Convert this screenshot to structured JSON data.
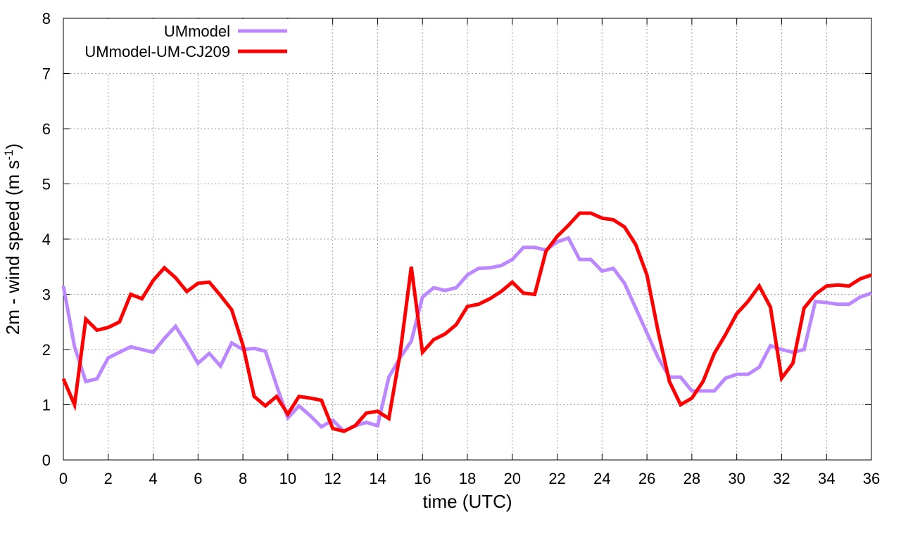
{
  "chart_data": {
    "type": "line",
    "xlabel": "time (UTC)",
    "ylabel_main": "2m - wind speed  (m s",
    "ylabel_sup": "-1",
    "ylabel_close": ")",
    "xlim": [
      0,
      36
    ],
    "ylim": [
      0,
      8
    ],
    "xticks": [
      "0",
      "2",
      "4",
      "6",
      "8",
      "10",
      "12",
      "14",
      "16",
      "18",
      "20",
      "22",
      "24",
      "26",
      "28",
      "30",
      "32",
      "34",
      "36"
    ],
    "yticks": [
      "0",
      "1",
      "2",
      "3",
      "4",
      "5",
      "6",
      "7",
      "8"
    ],
    "grid": true,
    "legend_position": "top-left",
    "x": [
      0,
      0.5,
      1,
      1.5,
      2,
      2.5,
      3,
      3.5,
      4,
      4.5,
      5,
      5.5,
      6,
      6.5,
      7,
      7.5,
      8,
      8.5,
      9,
      9.5,
      10,
      10.5,
      11,
      11.5,
      12,
      12.5,
      13,
      13.5,
      14,
      14.5,
      15,
      15.5,
      16,
      16.5,
      17,
      17.5,
      18,
      18.5,
      19,
      19.5,
      20,
      20.5,
      21,
      21.5,
      22,
      22.5,
      23,
      23.5,
      24,
      24.5,
      25,
      25.5,
      26,
      26.5,
      27,
      27.5,
      28,
      28.5,
      29,
      29.5,
      30,
      30.5,
      31,
      31.5,
      32,
      32.5,
      33,
      33.5,
      34,
      34.5,
      35,
      35.5,
      36
    ],
    "series": [
      {
        "name": "UMmodel",
        "color": "#bb88ff",
        "values": [
          3.15,
          2.05,
          1.42,
          1.47,
          1.85,
          1.95,
          2.05,
          2.0,
          1.95,
          2.2,
          2.42,
          2.1,
          1.75,
          1.93,
          1.7,
          2.12,
          2.0,
          2.02,
          1.97,
          1.35,
          0.76,
          0.98,
          0.8,
          0.6,
          0.72,
          0.52,
          0.62,
          0.68,
          0.62,
          1.5,
          1.85,
          2.15,
          2.95,
          3.12,
          3.07,
          3.12,
          3.35,
          3.47,
          3.48,
          3.52,
          3.63,
          3.85,
          3.85,
          3.8,
          3.95,
          4.02,
          3.63,
          3.63,
          3.42,
          3.47,
          3.2,
          2.75,
          2.3,
          1.85,
          1.5,
          1.5,
          1.25,
          1.25,
          1.25,
          1.48,
          1.55,
          1.55,
          1.68,
          2.07,
          2.0,
          1.95,
          2.0,
          2.87,
          2.85,
          2.82,
          2.82,
          2.95,
          3.02
        ]
      },
      {
        "name": "UMmodel-UM-CJ209",
        "color": "#ff0000",
        "values": [
          1.47,
          1.0,
          2.55,
          2.35,
          2.4,
          2.5,
          3.0,
          2.92,
          3.25,
          3.48,
          3.3,
          3.05,
          3.2,
          3.22,
          2.98,
          2.72,
          2.08,
          1.15,
          0.98,
          1.15,
          0.83,
          1.15,
          1.12,
          1.08,
          0.57,
          0.52,
          0.62,
          0.85,
          0.88,
          0.75,
          1.92,
          3.5,
          1.95,
          2.18,
          2.28,
          2.45,
          2.78,
          2.82,
          2.92,
          3.05,
          3.22,
          3.02,
          3.0,
          3.78,
          4.05,
          4.25,
          4.47,
          4.47,
          4.38,
          4.35,
          4.22,
          3.9,
          3.35,
          2.32,
          1.42,
          1.0,
          1.12,
          1.42,
          1.93,
          2.27,
          2.65,
          2.87,
          3.15,
          2.77,
          1.48,
          1.75,
          2.75,
          3.0,
          3.15,
          3.17,
          3.15,
          3.28,
          3.35
        ]
      }
    ]
  }
}
